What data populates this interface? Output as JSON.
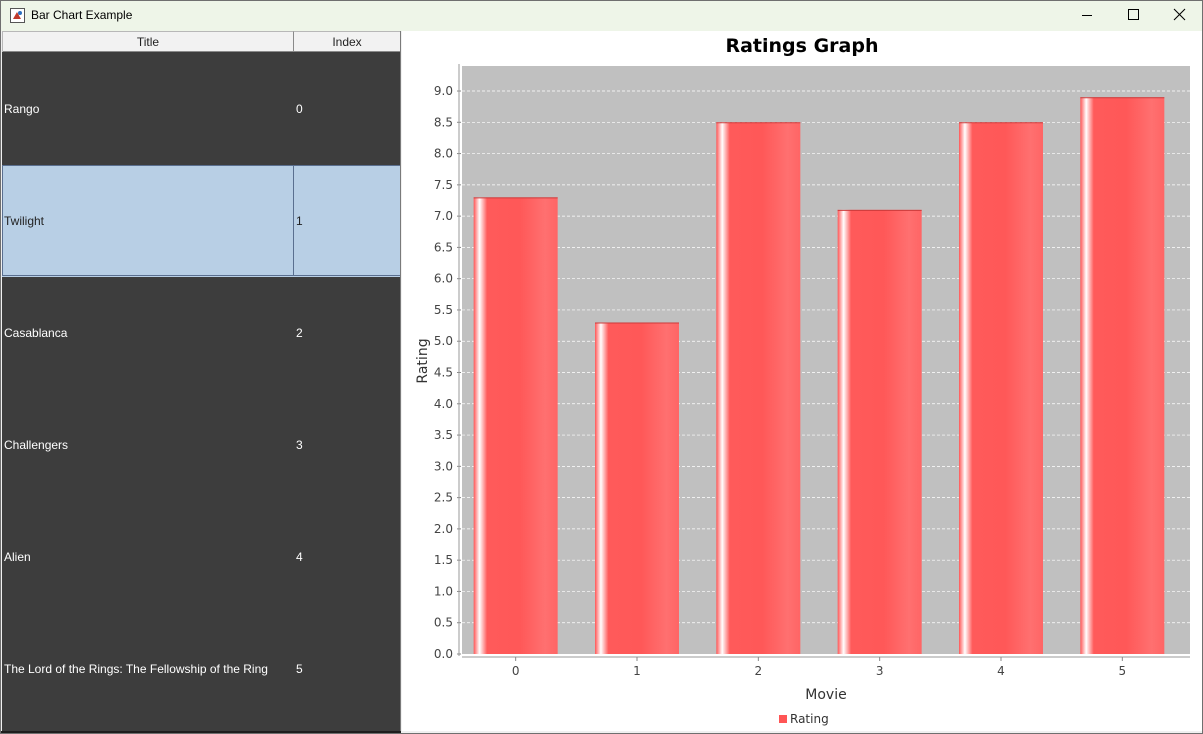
{
  "window": {
    "title": "Bar Chart Example",
    "minimize_icon": "minimize-icon",
    "maximize_icon": "maximize-icon",
    "close_icon": "close-icon"
  },
  "table": {
    "columns": [
      "Title",
      "Index"
    ],
    "rows": [
      {
        "title": "Rango",
        "index": "0"
      },
      {
        "title": "Twilight",
        "index": "1"
      },
      {
        "title": "Casablanca",
        "index": "2"
      },
      {
        "title": "Challengers",
        "index": "3"
      },
      {
        "title": "Alien",
        "index": "4"
      },
      {
        "title": "The Lord of the Rings: The Fellowship of the Ring",
        "index": "5"
      }
    ],
    "selected_row": 1,
    "colors": {
      "background": "#3d3d3d",
      "selected": "#b8cfe5"
    }
  },
  "chart_data": {
    "type": "bar",
    "title": "Ratings Graph",
    "xlabel": "Movie",
    "ylabel": "Rating",
    "categories": [
      "0",
      "1",
      "2",
      "3",
      "4",
      "5"
    ],
    "series": [
      {
        "name": "Rating",
        "values": [
          7.3,
          5.3,
          8.5,
          7.1,
          8.5,
          8.9
        ],
        "color": "#ff5555"
      }
    ],
    "ylim": [
      0,
      9.4
    ],
    "yticks": [
      "0.0",
      "0.5",
      "1.0",
      "1.5",
      "2.0",
      "2.5",
      "3.0",
      "3.5",
      "4.0",
      "4.5",
      "5.0",
      "5.5",
      "6.0",
      "6.5",
      "7.0",
      "7.5",
      "8.0",
      "8.5",
      "9.0"
    ],
    "grid": true,
    "legend": "bottom-center",
    "plot_background": "#c0c0c0"
  }
}
